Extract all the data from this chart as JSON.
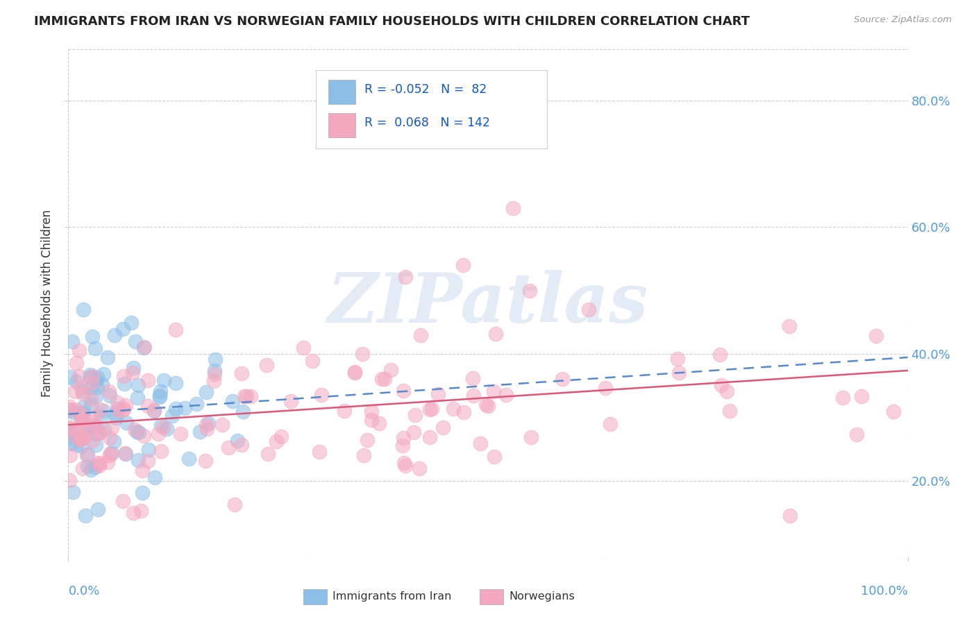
{
  "title": "IMMIGRANTS FROM IRAN VS NORWEGIAN FAMILY HOUSEHOLDS WITH CHILDREN CORRELATION CHART",
  "source": "Source: ZipAtlas.com",
  "ylabel": "Family Households with Children",
  "legend_blue_R": "-0.052",
  "legend_blue_N": "82",
  "legend_pink_R": "0.068",
  "legend_pink_N": "142",
  "legend_label_blue": "Immigrants from Iran",
  "legend_label_pink": "Norwegians",
  "ytick_vals": [
    0.2,
    0.4,
    0.6,
    0.8
  ],
  "ytick_labels": [
    "20.0%",
    "40.0%",
    "60.0%",
    "80.0%"
  ],
  "xlim": [
    0.0,
    1.0
  ],
  "ylim": [
    0.08,
    0.88
  ],
  "blue_color": "#8bbfe8",
  "pink_color": "#f4a8c0",
  "blue_line_color": "#5588cc",
  "pink_line_color": "#e05575",
  "tick_color": "#5599dd",
  "watermark": "ZIPatlas",
  "background_color": "#ffffff",
  "grid_color": "#cccccc"
}
